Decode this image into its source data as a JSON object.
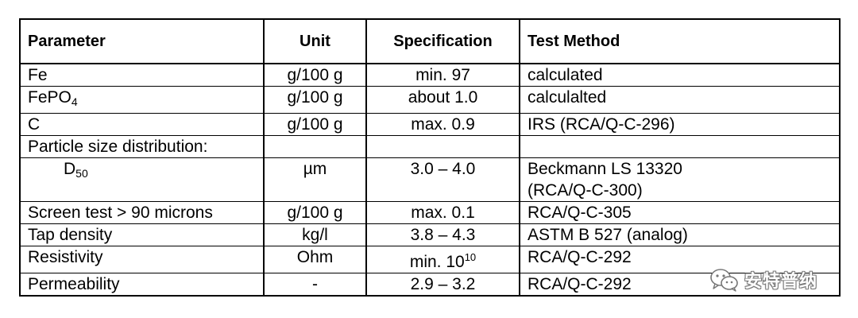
{
  "table": {
    "headers": {
      "parameter": "Parameter",
      "unit": "Unit",
      "specification": "Specification",
      "test_method": "Test Method"
    },
    "rows": [
      {
        "parameter": "Fe",
        "unit": "g/100 g",
        "specification": "min. 97",
        "test_method": "calculated"
      },
      {
        "parameter_base": "FePO",
        "parameter_sub": "4",
        "unit": "g/100 g",
        "specification": "about 1.0",
        "test_method": "calculalted"
      },
      {
        "parameter": "C",
        "unit": "g/100 g",
        "specification": "max. 0.9",
        "test_method": "IRS (RCA/Q-C-296)"
      },
      {
        "parameter": "Particle size distribution:",
        "unit": "",
        "specification": "",
        "test_method": ""
      },
      {
        "parameter_base": "D",
        "parameter_sub": "50",
        "unit": "µm",
        "specification": "3.0 – 4.0",
        "test_method_line1": "Beckmann LS 13320",
        "test_method_line2": "(RCA/Q-C-300)"
      },
      {
        "parameter": "Screen test > 90 microns",
        "unit": "g/100 g",
        "specification": "max. 0.1",
        "test_method": "RCA/Q-C-305"
      },
      {
        "parameter": "Tap density",
        "unit": "kg/l",
        "specification": "3.8 – 4.3",
        "test_method": "ASTM B 527 (analog)"
      },
      {
        "parameter": "Resistivity",
        "unit": "Ohm",
        "specification_base": "min. 10",
        "specification_sup": "10",
        "test_method": "RCA/Q-C-292"
      },
      {
        "parameter": "Permeability",
        "unit": "-",
        "specification": "2.9 – 3.2",
        "test_method": "RCA/Q-C-292"
      }
    ]
  },
  "watermark": {
    "text": "安特普纳",
    "icon": "wechat-icon"
  }
}
